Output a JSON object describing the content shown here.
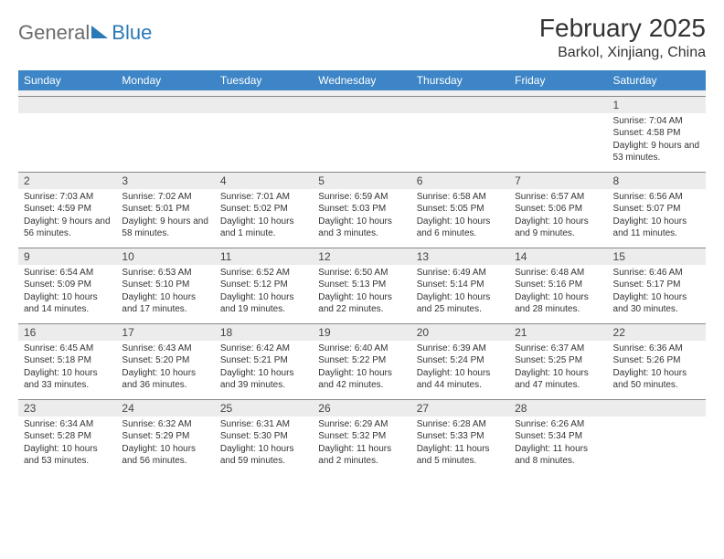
{
  "brand": {
    "general": "General",
    "blue": "Blue"
  },
  "title": {
    "monthYear": "February 2025",
    "location": "Barkol, Xinjiang, China"
  },
  "colors": {
    "headerBg": "#3d85c6",
    "headerText": "#ffffff",
    "dateRowBg": "#ececec",
    "borderTop": "#888888",
    "brandBlue": "#2a7ab8",
    "brandGray": "#6b6b6b"
  },
  "daysOfWeek": [
    "Sunday",
    "Monday",
    "Tuesday",
    "Wednesday",
    "Thursday",
    "Friday",
    "Saturday"
  ],
  "weeks": [
    [
      null,
      null,
      null,
      null,
      null,
      null,
      {
        "d": "1",
        "sr": "7:04 AM",
        "ss": "4:58 PM",
        "dl": "9 hours and 53 minutes."
      }
    ],
    [
      {
        "d": "2",
        "sr": "7:03 AM",
        "ss": "4:59 PM",
        "dl": "9 hours and 56 minutes."
      },
      {
        "d": "3",
        "sr": "7:02 AM",
        "ss": "5:01 PM",
        "dl": "9 hours and 58 minutes."
      },
      {
        "d": "4",
        "sr": "7:01 AM",
        "ss": "5:02 PM",
        "dl": "10 hours and 1 minute."
      },
      {
        "d": "5",
        "sr": "6:59 AM",
        "ss": "5:03 PM",
        "dl": "10 hours and 3 minutes."
      },
      {
        "d": "6",
        "sr": "6:58 AM",
        "ss": "5:05 PM",
        "dl": "10 hours and 6 minutes."
      },
      {
        "d": "7",
        "sr": "6:57 AM",
        "ss": "5:06 PM",
        "dl": "10 hours and 9 minutes."
      },
      {
        "d": "8",
        "sr": "6:56 AM",
        "ss": "5:07 PM",
        "dl": "10 hours and 11 minutes."
      }
    ],
    [
      {
        "d": "9",
        "sr": "6:54 AM",
        "ss": "5:09 PM",
        "dl": "10 hours and 14 minutes."
      },
      {
        "d": "10",
        "sr": "6:53 AM",
        "ss": "5:10 PM",
        "dl": "10 hours and 17 minutes."
      },
      {
        "d": "11",
        "sr": "6:52 AM",
        "ss": "5:12 PM",
        "dl": "10 hours and 19 minutes."
      },
      {
        "d": "12",
        "sr": "6:50 AM",
        "ss": "5:13 PM",
        "dl": "10 hours and 22 minutes."
      },
      {
        "d": "13",
        "sr": "6:49 AM",
        "ss": "5:14 PM",
        "dl": "10 hours and 25 minutes."
      },
      {
        "d": "14",
        "sr": "6:48 AM",
        "ss": "5:16 PM",
        "dl": "10 hours and 28 minutes."
      },
      {
        "d": "15",
        "sr": "6:46 AM",
        "ss": "5:17 PM",
        "dl": "10 hours and 30 minutes."
      }
    ],
    [
      {
        "d": "16",
        "sr": "6:45 AM",
        "ss": "5:18 PM",
        "dl": "10 hours and 33 minutes."
      },
      {
        "d": "17",
        "sr": "6:43 AM",
        "ss": "5:20 PM",
        "dl": "10 hours and 36 minutes."
      },
      {
        "d": "18",
        "sr": "6:42 AM",
        "ss": "5:21 PM",
        "dl": "10 hours and 39 minutes."
      },
      {
        "d": "19",
        "sr": "6:40 AM",
        "ss": "5:22 PM",
        "dl": "10 hours and 42 minutes."
      },
      {
        "d": "20",
        "sr": "6:39 AM",
        "ss": "5:24 PM",
        "dl": "10 hours and 44 minutes."
      },
      {
        "d": "21",
        "sr": "6:37 AM",
        "ss": "5:25 PM",
        "dl": "10 hours and 47 minutes."
      },
      {
        "d": "22",
        "sr": "6:36 AM",
        "ss": "5:26 PM",
        "dl": "10 hours and 50 minutes."
      }
    ],
    [
      {
        "d": "23",
        "sr": "6:34 AM",
        "ss": "5:28 PM",
        "dl": "10 hours and 53 minutes."
      },
      {
        "d": "24",
        "sr": "6:32 AM",
        "ss": "5:29 PM",
        "dl": "10 hours and 56 minutes."
      },
      {
        "d": "25",
        "sr": "6:31 AM",
        "ss": "5:30 PM",
        "dl": "10 hours and 59 minutes."
      },
      {
        "d": "26",
        "sr": "6:29 AM",
        "ss": "5:32 PM",
        "dl": "11 hours and 2 minutes."
      },
      {
        "d": "27",
        "sr": "6:28 AM",
        "ss": "5:33 PM",
        "dl": "11 hours and 5 minutes."
      },
      {
        "d": "28",
        "sr": "6:26 AM",
        "ss": "5:34 PM",
        "dl": "11 hours and 8 minutes."
      },
      null
    ]
  ],
  "labels": {
    "sunrise": "Sunrise:",
    "sunset": "Sunset:",
    "daylight": "Daylight:"
  }
}
